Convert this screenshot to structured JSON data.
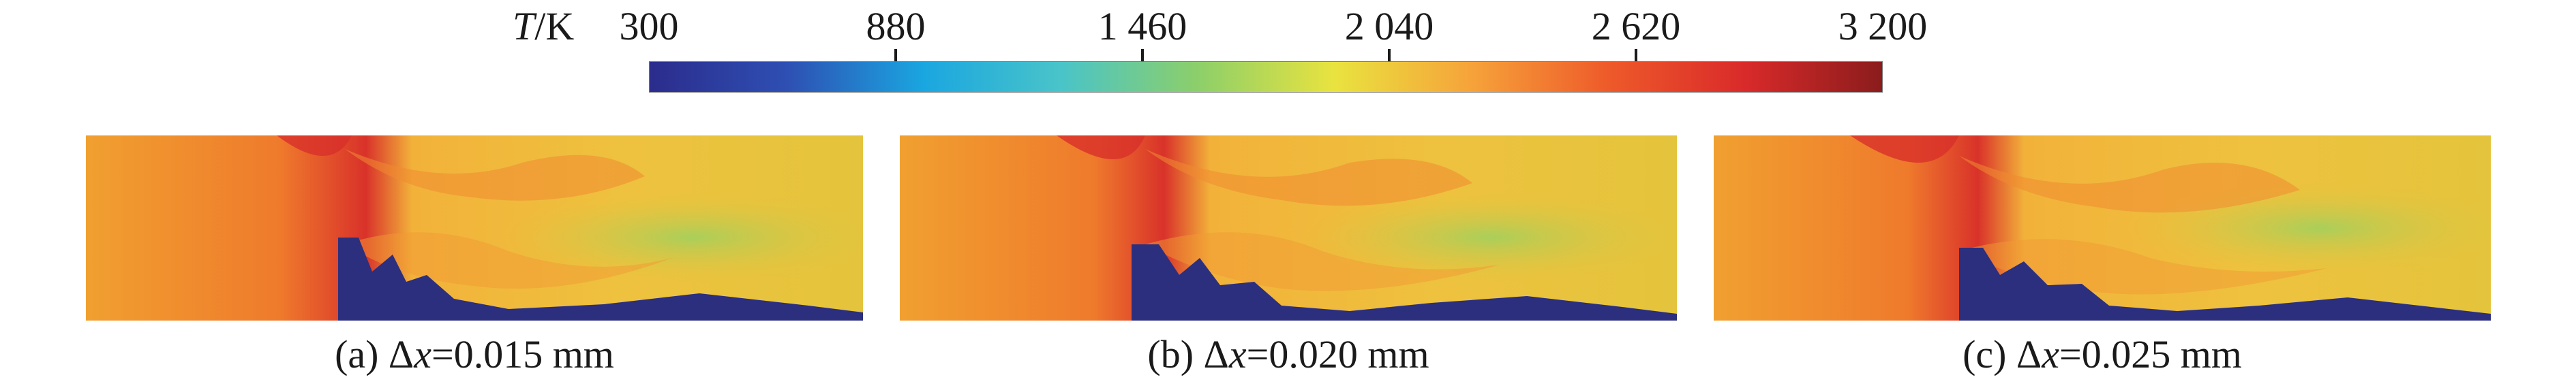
{
  "colorbar": {
    "title_var": "T",
    "title_unit": "/K",
    "ticks": [
      "300",
      "880",
      "1 460",
      "2 040",
      "2 620",
      "3 200"
    ],
    "colors": [
      "#2b2c8c",
      "#2e4fb3",
      "#1aa6e0",
      "#49c4c9",
      "#8ccf6a",
      "#e9e33f",
      "#f6a33a",
      "#ee5a2a",
      "#d92a2a",
      "#8b1c1c"
    ]
  },
  "panels": [
    {
      "letter": "(a) Δ",
      "var": "x",
      "value": "=0.015 mm"
    },
    {
      "letter": "(b) Δ",
      "var": "x",
      "value": "=0.020 mm"
    },
    {
      "letter": "(c) Δ",
      "var": "x",
      "value": "=0.025 mm"
    }
  ]
}
